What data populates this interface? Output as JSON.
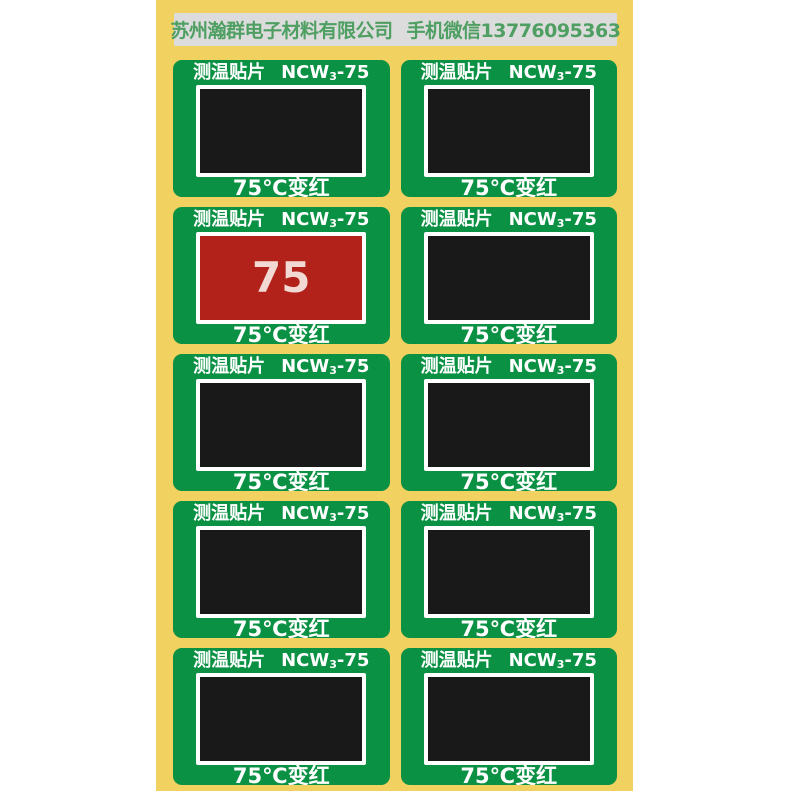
{
  "colors": {
    "page_bg": "#FFFFFF",
    "panel_yellow": "#F1D160",
    "bar_gray": "#DCDCDC",
    "header_green": "#4F9F63",
    "sticker_green": "#0A9143",
    "window_black": "#191919",
    "window_red": "#B2221A",
    "red_value": "#F2D9D4"
  },
  "header": {
    "company": "苏州瀚群电子材料有限公司",
    "contact": "手机微信13776095363"
  },
  "sticker_template": {
    "name": "测温贴片",
    "model_prefix": "NCW",
    "model_subscript": "3",
    "model_suffix": "-75",
    "caption": "75℃变红"
  },
  "grid": {
    "rows": 5,
    "columns": 2,
    "count": 10
  },
  "stickers": [
    {
      "row": 1,
      "col": 1,
      "state": "black"
    },
    {
      "row": 1,
      "col": 2,
      "state": "black"
    },
    {
      "row": 2,
      "col": 1,
      "state": "red",
      "value": "75"
    },
    {
      "row": 2,
      "col": 2,
      "state": "black"
    },
    {
      "row": 3,
      "col": 1,
      "state": "black"
    },
    {
      "row": 3,
      "col": 2,
      "state": "black"
    },
    {
      "row": 4,
      "col": 1,
      "state": "black"
    },
    {
      "row": 4,
      "col": 2,
      "state": "black"
    },
    {
      "row": 5,
      "col": 1,
      "state": "black"
    },
    {
      "row": 5,
      "col": 2,
      "state": "black"
    }
  ]
}
